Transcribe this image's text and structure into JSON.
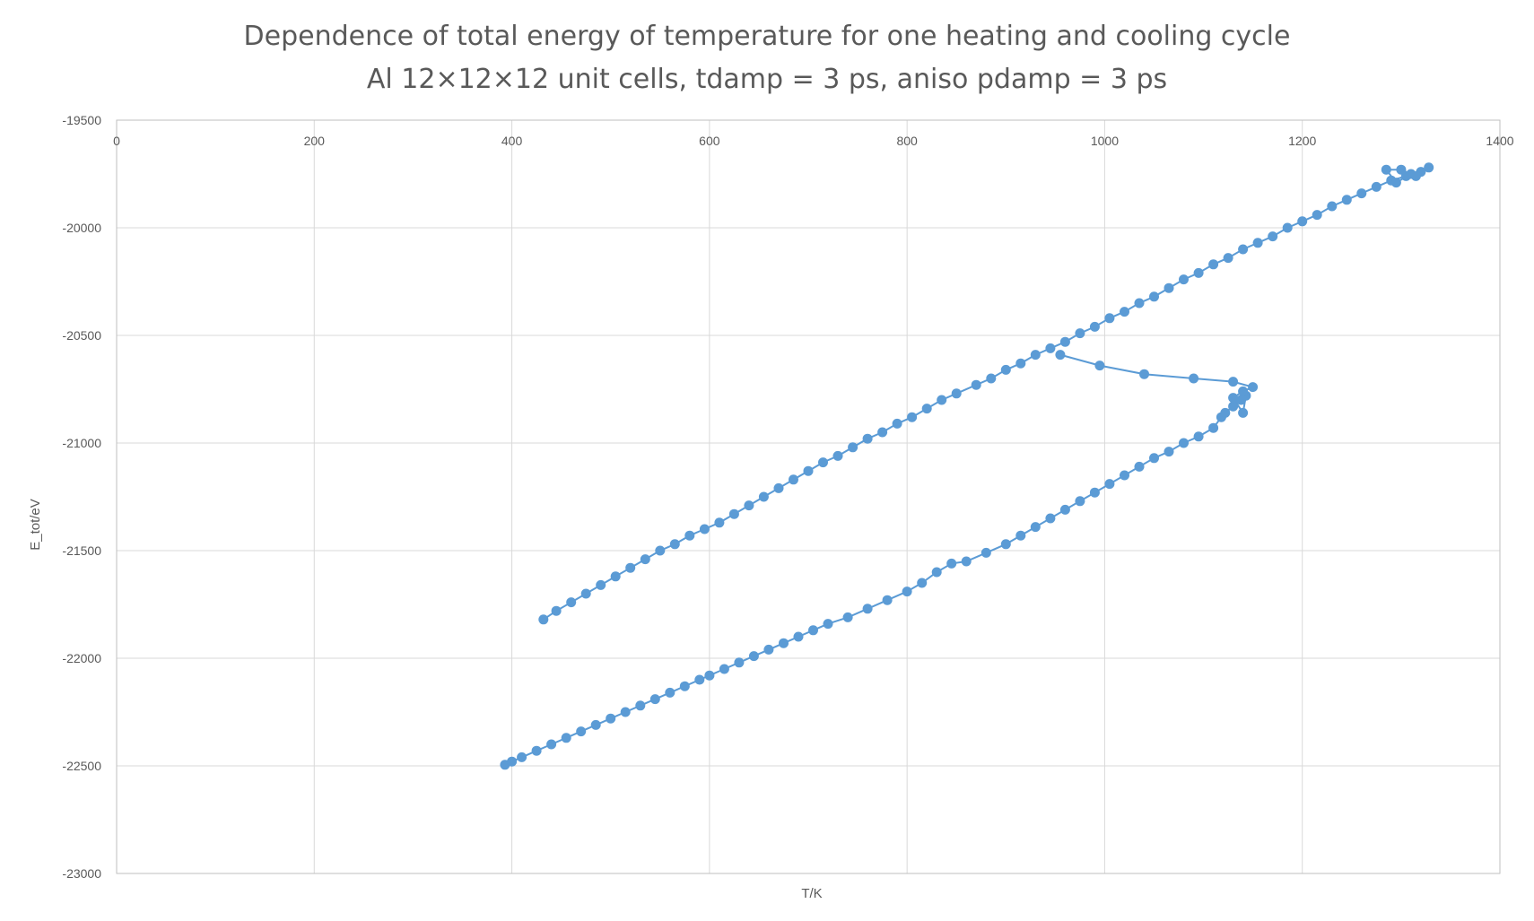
{
  "chart_data": {
    "type": "scatter",
    "title": "Dependence of total energy of temperature for one heating and cooling cycle",
    "subtitle": "Al 12×12×12 unit cells, tdamp = 3 ps, aniso pdamp = 3 ps",
    "xlabel": "T/K",
    "ylabel": "E_tot/eV",
    "xlim": [
      0,
      1400
    ],
    "ylim": [
      -23000,
      -19500
    ],
    "x_ticks": [
      "0",
      "200",
      "400",
      "600",
      "800",
      "1000",
      "1200",
      "1400"
    ],
    "y_ticks": [
      "-19500",
      "-20000",
      "-20500",
      "-21000",
      "-21500",
      "-22000",
      "-22500",
      "-23000"
    ],
    "x_axis_position": "top",
    "grid": true,
    "legend": "none",
    "color": "#5b9bd5",
    "series": [
      {
        "x": [
          393,
          400,
          410,
          425,
          440,
          455,
          470,
          485,
          500,
          515,
          530,
          545,
          560,
          575,
          590,
          600,
          615,
          630,
          645,
          660,
          675,
          690,
          705,
          720,
          740,
          760,
          780,
          800,
          815,
          830,
          845,
          860,
          880,
          900,
          915,
          930,
          945,
          960,
          975,
          990,
          1005,
          1020,
          1035,
          1050,
          1065,
          1080,
          1095,
          1110,
          1118,
          1122,
          1130,
          1138,
          1143,
          1140,
          1130,
          1140,
          1150,
          1130,
          1090,
          1040,
          995,
          955
        ],
        "y": [
          -22495,
          -22480,
          -22460,
          -22430,
          -22400,
          -22370,
          -22340,
          -22310,
          -22280,
          -22250,
          -22220,
          -22190,
          -22160,
          -22130,
          -22100,
          -22080,
          -22050,
          -22020,
          -21990,
          -21960,
          -21930,
          -21900,
          -21870,
          -21840,
          -21810,
          -21770,
          -21730,
          -21690,
          -21650,
          -21600,
          -21560,
          -21550,
          -21510,
          -21470,
          -21430,
          -21390,
          -21350,
          -21310,
          -21270,
          -21230,
          -21190,
          -21150,
          -21110,
          -21070,
          -21040,
          -21000,
          -20970,
          -20930,
          -20880,
          -20860,
          -20830,
          -20800,
          -20780,
          -20860,
          -20790,
          -20760,
          -20740,
          -20715,
          -20700,
          -20680,
          -20640,
          -20590
        ]
      },
      {
        "x": [
          432,
          445,
          460,
          475,
          490,
          505,
          520,
          535,
          550,
          565,
          580,
          595,
          610,
          625,
          640,
          655,
          670,
          685,
          700,
          715,
          730,
          745,
          760,
          775,
          790,
          805,
          820,
          835,
          850,
          870,
          885,
          900,
          915,
          930,
          945,
          960,
          975,
          990,
          1005,
          1020,
          1035,
          1050,
          1065,
          1080,
          1095,
          1110,
          1125,
          1140,
          1155,
          1170,
          1185,
          1200,
          1215,
          1230,
          1245,
          1260,
          1275,
          1290,
          1305,
          1320,
          1328,
          1315,
          1300,
          1285,
          1295,
          1310
        ],
        "y": [
          -21820,
          -21780,
          -21740,
          -21700,
          -21660,
          -21620,
          -21580,
          -21540,
          -21500,
          -21470,
          -21430,
          -21400,
          -21370,
          -21330,
          -21290,
          -21250,
          -21210,
          -21170,
          -21130,
          -21090,
          -21060,
          -21020,
          -20980,
          -20950,
          -20910,
          -20880,
          -20840,
          -20800,
          -20770,
          -20730,
          -20700,
          -20660,
          -20630,
          -20590,
          -20560,
          -20530,
          -20490,
          -20460,
          -20420,
          -20390,
          -20350,
          -20320,
          -20280,
          -20240,
          -20210,
          -20170,
          -20140,
          -20100,
          -20070,
          -20040,
          -20000,
          -19970,
          -19940,
          -19900,
          -19870,
          -19840,
          -19810,
          -19780,
          -19760,
          -19740,
          -19720,
          -19760,
          -19730,
          -19730,
          -19790,
          -19750
        ]
      }
    ]
  }
}
